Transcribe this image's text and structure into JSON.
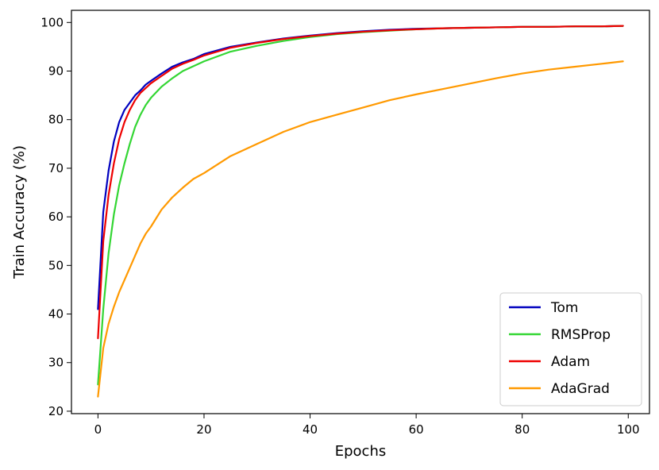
{
  "chart_data": {
    "type": "line",
    "title": "",
    "xlabel": "Epochs",
    "ylabel": "Train Accuracy (%)",
    "xlim": [
      -5,
      104
    ],
    "ylim": [
      19.5,
      102.5
    ],
    "x_ticks": [
      0,
      20,
      40,
      60,
      80,
      100
    ],
    "y_ticks": [
      20,
      30,
      40,
      50,
      60,
      70,
      80,
      90,
      100
    ],
    "grid": false,
    "legend_position": "lower-right",
    "x": [
      0,
      1,
      2,
      3,
      4,
      5,
      6,
      7,
      8,
      9,
      10,
      12,
      14,
      16,
      18,
      20,
      25,
      30,
      35,
      40,
      45,
      50,
      55,
      60,
      65,
      70,
      75,
      80,
      85,
      90,
      95,
      99
    ],
    "series": [
      {
        "name": "Tom",
        "color": "#0000bf",
        "values": [
          41,
          61,
          69.5,
          75.5,
          79.5,
          82,
          83.5,
          85,
          86,
          87.2,
          88,
          89.5,
          90.9,
          91.8,
          92.5,
          93.5,
          95,
          95.9,
          96.7,
          97.3,
          97.8,
          98.2,
          98.5,
          98.7,
          98.8,
          98.9,
          99.0,
          99.1,
          99.1,
          99.2,
          99.2,
          99.3
        ]
      },
      {
        "name": "RMSProp",
        "color": "#33d633",
        "values": [
          25.5,
          41,
          52.5,
          60.5,
          66.5,
          71,
          75,
          78.5,
          81,
          83,
          84.5,
          86.8,
          88.5,
          90,
          91,
          92,
          94,
          95.2,
          96.2,
          97.0,
          97.6,
          98.0,
          98.3,
          98.6,
          98.8,
          98.9,
          99.0,
          99.1,
          99.1,
          99.2,
          99.2,
          99.3
        ]
      },
      {
        "name": "Adam",
        "color": "#ee0000",
        "values": [
          35,
          55,
          64.5,
          71,
          76,
          79.5,
          82,
          84,
          85.5,
          86.5,
          87.5,
          89,
          90.5,
          91.5,
          92.3,
          93.2,
          94.8,
          95.8,
          96.6,
          97.2,
          97.7,
          98.1,
          98.4,
          98.6,
          98.8,
          98.9,
          99.0,
          99.1,
          99.1,
          99.2,
          99.2,
          99.3
        ]
      },
      {
        "name": "AdaGrad",
        "color": "#ff9900",
        "values": [
          23,
          33,
          38,
          41.5,
          44.5,
          47,
          49.5,
          52,
          54.5,
          56.5,
          58,
          61.5,
          64,
          66,
          67.8,
          69,
          72.5,
          75,
          77.5,
          79.5,
          81,
          82.5,
          84,
          85.2,
          86.3,
          87.4,
          88.5,
          89.5,
          90.3,
          90.9,
          91.5,
          92.0
        ]
      }
    ]
  }
}
